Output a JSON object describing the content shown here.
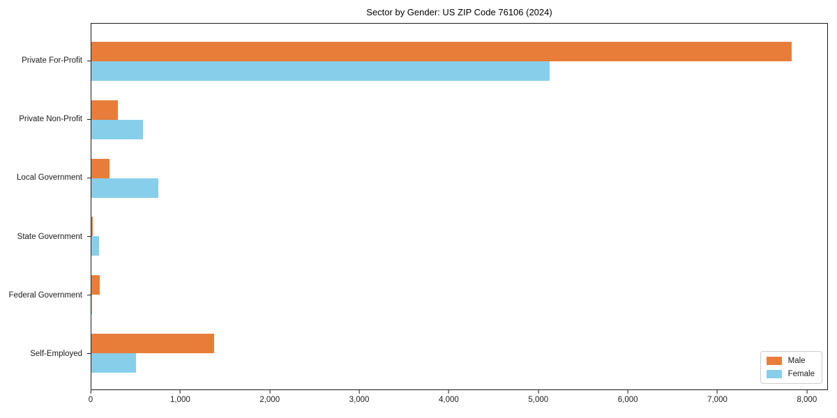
{
  "chart_data": {
    "type": "bar",
    "orientation": "horizontal",
    "title": "Sector by Gender: US ZIP Code 76106 (2024)",
    "categories": [
      "Private For-Profit",
      "Private Non-Profit",
      "Local Government",
      "State Government",
      "Federal Government",
      "Self-Employed"
    ],
    "series": [
      {
        "name": "Male",
        "color": "#e87d3a",
        "values": [
          7840,
          300,
          200,
          15,
          95,
          1370
        ]
      },
      {
        "name": "Female",
        "color": "#87ceeb",
        "values": [
          5130,
          580,
          750,
          85,
          10,
          500
        ]
      }
    ],
    "xlabel": "",
    "ylabel": "",
    "xlim": [
      0,
      8235
    ],
    "xticks": [
      0,
      1000,
      2000,
      3000,
      4000,
      5000,
      6000,
      7000,
      8000
    ],
    "xtick_labels": [
      "0",
      "1,000",
      "2,000",
      "3,000",
      "4,000",
      "5,000",
      "6,000",
      "7,000",
      "8,000"
    ],
    "legend_position": "lower right",
    "grid": false,
    "colors": {
      "axis": "#1a1a1a",
      "background": "#ffffff"
    }
  }
}
